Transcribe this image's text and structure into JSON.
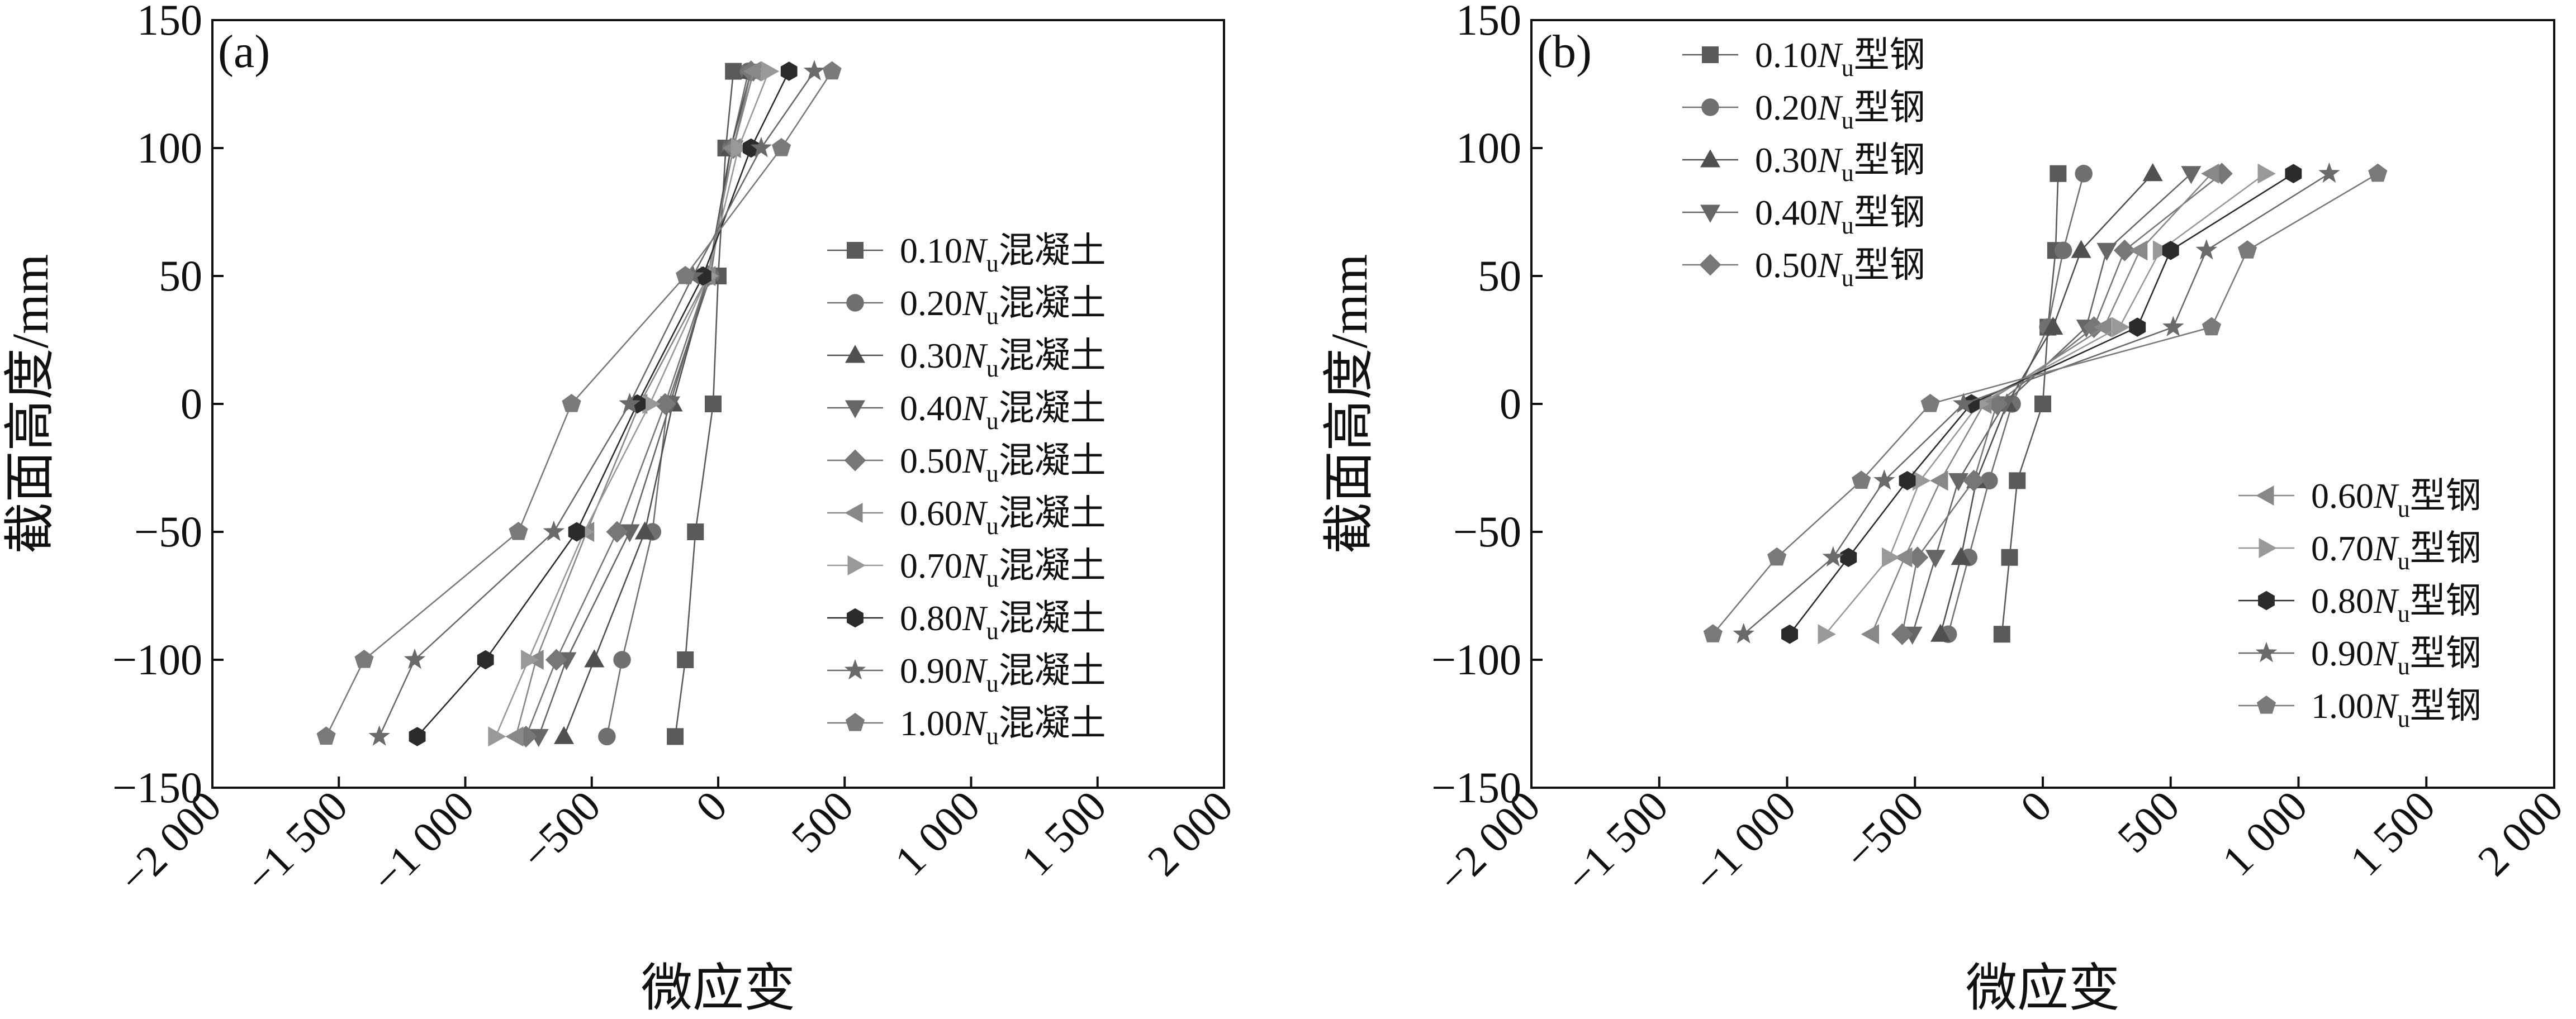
{
  "chart_data": [
    {
      "type": "line",
      "panel_label": "(a)",
      "xlabel": "微应变",
      "ylabel": "截面高度/mm",
      "xlim": [
        -2000,
        2000
      ],
      "ylim": [
        -150,
        150
      ],
      "xticks": [
        -2000,
        -1500,
        -1000,
        -500,
        0,
        500,
        1000,
        1500,
        2000
      ],
      "yticks": [
        -150,
        -100,
        -50,
        0,
        50,
        100,
        150
      ],
      "xtick_labels": [
        "−2 000",
        "−1 500",
        "−1 000",
        "−500",
        "0",
        "500",
        "1 000",
        "1 500",
        "2 000"
      ],
      "ytick_labels": [
        "−150",
        "−100",
        "−50",
        "0",
        "50",
        "100",
        "150"
      ],
      "grid": false,
      "legend_groups": [
        {
          "placement": "center-right",
          "series": [
            0,
            1,
            2,
            3,
            4,
            5,
            6,
            7,
            8,
            9
          ]
        }
      ],
      "y": [
        130,
        100,
        50,
        0,
        -50,
        -100,
        -130
      ],
      "series": [
        {
          "name": "0.10Nu混凝土",
          "label_prefix": "0.10",
          "label_italic": "N",
          "label_sub": "u",
          "label_suffix": "混凝土",
          "marker": "square",
          "color": "#5a5a5a",
          "x": [
            60,
            30,
            0,
            -20,
            -90,
            -130,
            -170
          ]
        },
        {
          "name": "0.20Nu混凝土",
          "label_prefix": "0.20",
          "label_italic": "N",
          "label_sub": "u",
          "label_suffix": "混凝土",
          "marker": "circle",
          "color": "#707070",
          "x": [
            120,
            50,
            -30,
            -200,
            -260,
            -380,
            -440
          ]
        },
        {
          "name": "0.30Nu混凝土",
          "label_prefix": "0.30",
          "label_italic": "N",
          "label_sub": "u",
          "label_suffix": "混凝土",
          "marker": "triangle-up",
          "color": "#505050",
          "x": [
            130,
            50,
            -40,
            -180,
            -290,
            -490,
            -610
          ]
        },
        {
          "name": "0.40Nu混凝土",
          "label_prefix": "0.40",
          "label_italic": "N",
          "label_sub": "u",
          "label_suffix": "混凝土",
          "marker": "triangle-down",
          "color": "#666666",
          "x": [
            140,
            60,
            -40,
            -190,
            -350,
            -600,
            -710
          ]
        },
        {
          "name": "0.50Nu混凝土",
          "label_prefix": "0.50",
          "label_italic": "N",
          "label_sub": "u",
          "label_suffix": "混凝土",
          "marker": "diamond",
          "color": "#777777",
          "x": [
            130,
            60,
            -40,
            -210,
            -400,
            -640,
            -760
          ]
        },
        {
          "name": "0.60Nu混凝土",
          "label_prefix": "0.60",
          "label_italic": "N",
          "label_sub": "u",
          "label_suffix": "混凝土",
          "marker": "triangle-left",
          "color": "#888888",
          "x": [
            140,
            60,
            -40,
            -310,
            -520,
            -720,
            -800
          ]
        },
        {
          "name": "0.70Nu混凝土",
          "label_prefix": "0.70",
          "label_italic": "N",
          "label_sub": "u",
          "label_suffix": "混凝土",
          "marker": "triangle-right",
          "color": "#999999",
          "x": [
            200,
            80,
            -40,
            -270,
            -530,
            -750,
            -880
          ]
        },
        {
          "name": "0.80Nu混凝土",
          "label_prefix": "0.80",
          "label_italic": "N",
          "label_sub": "u",
          "label_suffix": "混凝土",
          "marker": "hexagon",
          "color": "#2b2b2b",
          "x": [
            280,
            130,
            -60,
            -320,
            -560,
            -920,
            -1190
          ]
        },
        {
          "name": "0.90Nu混凝土",
          "label_prefix": "0.90",
          "label_italic": "N",
          "label_sub": "u",
          "label_suffix": "混凝土",
          "marker": "star",
          "color": "#6a6a6a",
          "x": [
            380,
            170,
            -100,
            -350,
            -650,
            -1200,
            -1340
          ]
        },
        {
          "name": "1.00Nu混凝土",
          "label_prefix": "1.00",
          "label_italic": "N",
          "label_sub": "u",
          "label_suffix": "混凝土",
          "marker": "pentagon",
          "color": "#7a7a7a",
          "x": [
            450,
            250,
            -130,
            -580,
            -790,
            -1400,
            -1550
          ]
        }
      ]
    },
    {
      "type": "line",
      "panel_label": "(b)",
      "xlabel": "微应变",
      "ylabel": "截面高度/mm",
      "xlim": [
        -2000,
        2000
      ],
      "ylim": [
        -150,
        150
      ],
      "xticks": [
        -2000,
        -1500,
        -1000,
        -500,
        0,
        500,
        1000,
        1500,
        2000
      ],
      "yticks": [
        -150,
        -100,
        -50,
        0,
        50,
        100,
        150
      ],
      "xtick_labels": [
        "−2 000",
        "−1 500",
        "−1 000",
        "−500",
        "0",
        "500",
        "1 000",
        "1 500",
        "2 000"
      ],
      "ytick_labels": [
        "−150",
        "−100",
        "−50",
        "0",
        "50",
        "100",
        "150"
      ],
      "grid": false,
      "legend_groups": [
        {
          "placement": "top-left",
          "series": [
            0,
            1,
            2,
            3,
            4
          ]
        },
        {
          "placement": "bottom-right",
          "series": [
            5,
            6,
            7,
            8,
            9
          ]
        }
      ],
      "y": [
        90,
        60,
        30,
        0,
        -30,
        -60,
        -90
      ],
      "series": [
        {
          "name": "0.10Nu型钢",
          "label_prefix": "0.10",
          "label_italic": "N",
          "label_sub": "u",
          "label_suffix": "型钢",
          "marker": "square",
          "color": "#5a5a5a",
          "x": [
            60,
            50,
            20,
            0,
            -100,
            -130,
            -160
          ]
        },
        {
          "name": "0.20Nu型钢",
          "label_prefix": "0.20",
          "label_italic": "N",
          "label_sub": "u",
          "label_suffix": "型钢",
          "marker": "circle",
          "color": "#707070",
          "x": [
            160,
            80,
            20,
            -120,
            -210,
            -290,
            -370
          ]
        },
        {
          "name": "0.30Nu型钢",
          "label_prefix": "0.30",
          "label_italic": "N",
          "label_sub": "u",
          "label_suffix": "型钢",
          "marker": "triangle-up",
          "color": "#505050",
          "x": [
            430,
            150,
            40,
            -140,
            -260,
            -320,
            -400
          ]
        },
        {
          "name": "0.40Nu型钢",
          "label_prefix": "0.40",
          "label_italic": "N",
          "label_sub": "u",
          "label_suffix": "型钢",
          "marker": "triangle-down",
          "color": "#666666",
          "x": [
            580,
            250,
            170,
            -150,
            -330,
            -420,
            -510
          ]
        },
        {
          "name": "0.50Nu型钢",
          "label_prefix": "0.50",
          "label_italic": "N",
          "label_sub": "u",
          "label_suffix": "型钢",
          "marker": "diamond",
          "color": "#777777",
          "x": [
            700,
            320,
            200,
            -180,
            -270,
            -490,
            -550
          ]
        },
        {
          "name": "0.60Nu型钢",
          "label_prefix": "0.60",
          "label_italic": "N",
          "label_sub": "u",
          "label_suffix": "型钢",
          "marker": "triangle-left",
          "color": "#888888",
          "x": [
            660,
            380,
            240,
            -230,
            -400,
            -540,
            -670
          ]
        },
        {
          "name": "0.70Nu型钢",
          "label_prefix": "0.70",
          "label_italic": "N",
          "label_sub": "u",
          "label_suffix": "型钢",
          "marker": "triangle-right",
          "color": "#999999",
          "x": [
            870,
            460,
            300,
            -250,
            -480,
            -600,
            -850
          ]
        },
        {
          "name": "0.80Nu型钢",
          "label_prefix": "0.80",
          "label_italic": "N",
          "label_sub": "u",
          "label_suffix": "型钢",
          "marker": "hexagon",
          "color": "#2b2b2b",
          "x": [
            980,
            500,
            370,
            -280,
            -530,
            -760,
            -990
          ]
        },
        {
          "name": "0.90Nu型钢",
          "label_prefix": "0.90",
          "label_italic": "N",
          "label_sub": "u",
          "label_suffix": "型钢",
          "marker": "star",
          "color": "#6a6a6a",
          "x": [
            1120,
            640,
            510,
            -310,
            -620,
            -820,
            -1170
          ]
        },
        {
          "name": "1.00Nu型钢",
          "label_prefix": "1.00",
          "label_italic": "N",
          "label_sub": "u",
          "label_suffix": "型钢",
          "marker": "pentagon",
          "color": "#7a7a7a",
          "x": [
            1310,
            800,
            660,
            -440,
            -710,
            -1040,
            -1290
          ]
        }
      ]
    }
  ]
}
